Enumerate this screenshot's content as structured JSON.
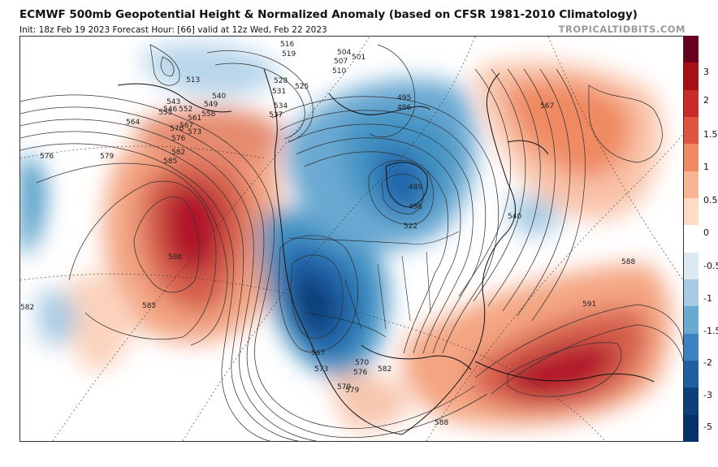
{
  "header": {
    "title": "ECMWF 500mb Geopotential Height & Normalized Anomaly (based on CFSR 1981-2010 Climatology)",
    "subtitle": "Init: 18z Feb 19 2023   Forecast Hour: [66]   valid at 12z Wed, Feb 22 2023",
    "credit": "TROPICALTIDBITS.COM"
  },
  "colors": {
    "strong_positive": "#b2182b",
    "positive": "#ef8a62",
    "weak_positive": "#fddbc7",
    "neutral": "#ffffff",
    "weak_negative": "#d1e5f0",
    "negative": "#67a9cf",
    "strong_negative": "#2166ac",
    "darkest_negative": "#08306b"
  },
  "colorbar": {
    "labels": [
      "3",
      "2",
      "1.5",
      "1",
      "0.5",
      "0",
      "-0.5",
      "-1",
      "-1.5",
      "-2",
      "-3",
      "-5"
    ],
    "colors": [
      "#67001f",
      "#a50f15",
      "#cb2a2a",
      "#e0553f",
      "#ef8a62",
      "#f7b596",
      "#fddbc7",
      "#ffffff",
      "#dbe9f4",
      "#a6cbe3",
      "#6aa9d2",
      "#3b83c0",
      "#205fa0",
      "#0f3f7a",
      "#08306b"
    ]
  },
  "contour_labels": [
    {
      "text": "516"
    },
    {
      "text": "519"
    },
    {
      "text": "504"
    },
    {
      "text": "507"
    },
    {
      "text": "510"
    },
    {
      "text": "501"
    },
    {
      "text": "513"
    },
    {
      "text": "528"
    },
    {
      "text": "531"
    },
    {
      "text": "525"
    },
    {
      "text": "534"
    },
    {
      "text": "537"
    },
    {
      "text": "540"
    },
    {
      "text": "543"
    },
    {
      "text": "546"
    },
    {
      "text": "549"
    },
    {
      "text": "552"
    },
    {
      "text": "555"
    },
    {
      "text": "558"
    },
    {
      "text": "561"
    },
    {
      "text": "564"
    },
    {
      "text": "567"
    },
    {
      "text": "570"
    },
    {
      "text": "573"
    },
    {
      "text": "576"
    },
    {
      "text": "579"
    },
    {
      "text": "582"
    },
    {
      "text": "585"
    },
    {
      "text": "588"
    },
    {
      "text": "591"
    },
    {
      "text": "495"
    },
    {
      "text": "486"
    },
    {
      "text": "489"
    },
    {
      "text": "498"
    },
    {
      "text": "522"
    },
    {
      "text": "576"
    },
    {
      "text": "579"
    },
    {
      "text": "582"
    },
    {
      "text": "585"
    },
    {
      "text": "588"
    },
    {
      "text": "567"
    },
    {
      "text": "540"
    },
    {
      "text": "567"
    },
    {
      "text": "570"
    },
    {
      "text": "573"
    },
    {
      "text": "576"
    },
    {
      "text": "579"
    },
    {
      "text": "582"
    },
    {
      "text": "588"
    }
  ]
}
